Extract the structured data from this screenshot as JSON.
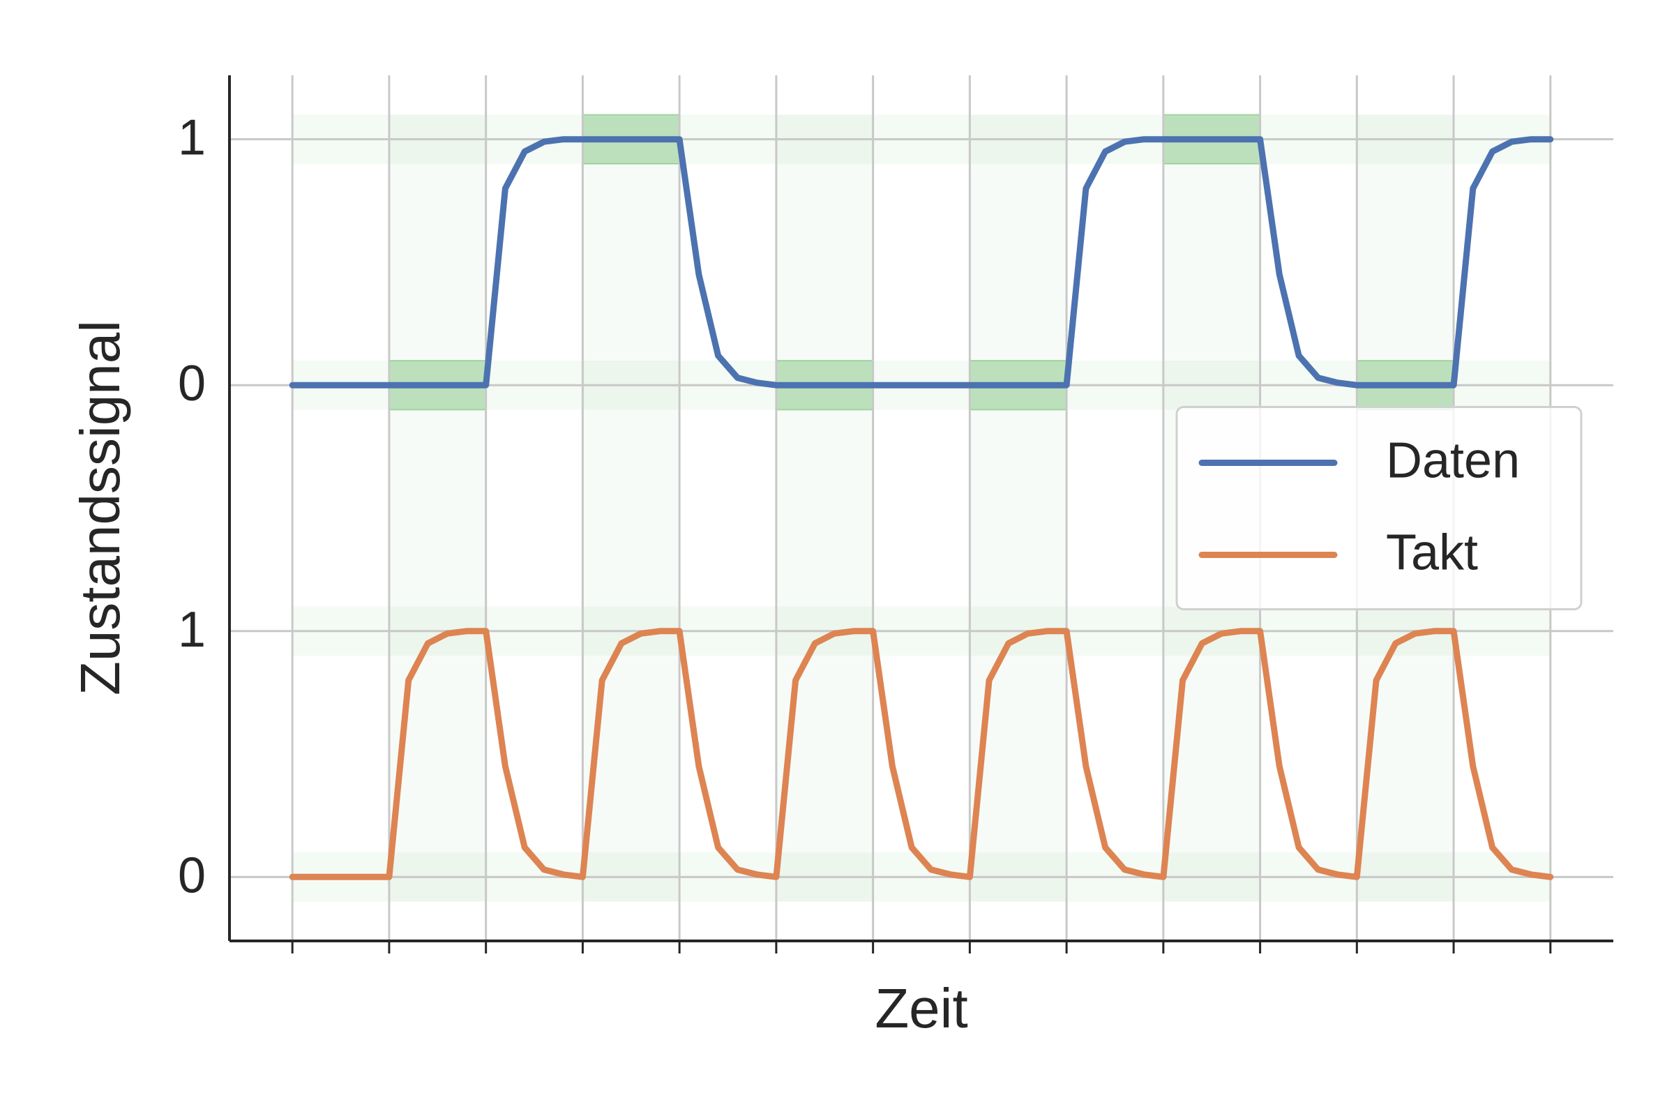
{
  "chart_data": {
    "type": "line",
    "x_label": "Zeit",
    "y_label": "Zustandssignal",
    "x": [
      0,
      0.2,
      0.4,
      0.6,
      0.8,
      1,
      1.2,
      1.4,
      1.6,
      1.8,
      2,
      2.2,
      2.4,
      2.6,
      2.8,
      3,
      3.2,
      3.4,
      3.6,
      3.8,
      4,
      4.2,
      4.4,
      4.6,
      4.8,
      5,
      5.2,
      5.4,
      5.6,
      5.8,
      6,
      6.2,
      6.4,
      6.6,
      6.8,
      7,
      7.2,
      7.4,
      7.6,
      7.8,
      8,
      8.2,
      8.4,
      8.6,
      8.8,
      9,
      9.2,
      9.4,
      9.6,
      9.8,
      10,
      10.2,
      10.4,
      10.6,
      10.8,
      11,
      11.2,
      11.4,
      11.6,
      11.8,
      12,
      12.2,
      12.4,
      12.6,
      12.8,
      13
    ],
    "series": [
      {
        "name": "Daten",
        "color": "#4c72b0",
        "values": [
          2,
          2,
          2,
          2,
          2,
          2,
          2,
          2,
          2,
          2,
          2,
          2.8,
          2.95,
          2.99,
          3,
          3,
          3,
          3,
          3,
          3,
          3,
          2.45,
          2.12,
          2.03,
          2.01,
          2,
          2,
          2,
          2,
          2,
          2,
          2,
          2,
          2,
          2,
          2,
          2,
          2,
          2,
          2,
          2,
          2.8,
          2.95,
          2.99,
          3,
          3,
          3,
          3,
          3,
          3,
          3,
          2.45,
          2.12,
          2.03,
          2.01,
          2,
          2,
          2,
          2,
          2,
          2,
          2.8,
          2.95,
          2.99,
          3,
          3
        ]
      },
      {
        "name": "Takt",
        "color": "#dd8452",
        "values": [
          0,
          0,
          0,
          0,
          0,
          0,
          0.8,
          0.95,
          0.99,
          1,
          1,
          0.45,
          0.12,
          0.03,
          0.01,
          0,
          0.8,
          0.95,
          0.99,
          1,
          1,
          0.45,
          0.12,
          0.03,
          0.01,
          0,
          0.8,
          0.95,
          0.99,
          1,
          1,
          0.45,
          0.12,
          0.03,
          0.01,
          0,
          0.8,
          0.95,
          0.99,
          1,
          1,
          0.45,
          0.12,
          0.03,
          0.01,
          0,
          0.8,
          0.95,
          0.99,
          1,
          1,
          0.45,
          0.12,
          0.03,
          0.01,
          0,
          0.8,
          0.95,
          0.99,
          1,
          1,
          0.45,
          0.12,
          0.03,
          0.01,
          0
        ]
      }
    ],
    "xlim": [
      -0.65,
      13.65
    ],
    "xticks": [
      0,
      1,
      2,
      3,
      4,
      5,
      6,
      7,
      8,
      9,
      10,
      11,
      12,
      13
    ],
    "ylim": [
      -0.26,
      3.26
    ],
    "yticks": [
      0,
      1,
      {
        "value": 2,
        "label": "0"
      },
      {
        "value": 3,
        "label": "1"
      }
    ],
    "grid": true,
    "legend": "center right"
  }
}
